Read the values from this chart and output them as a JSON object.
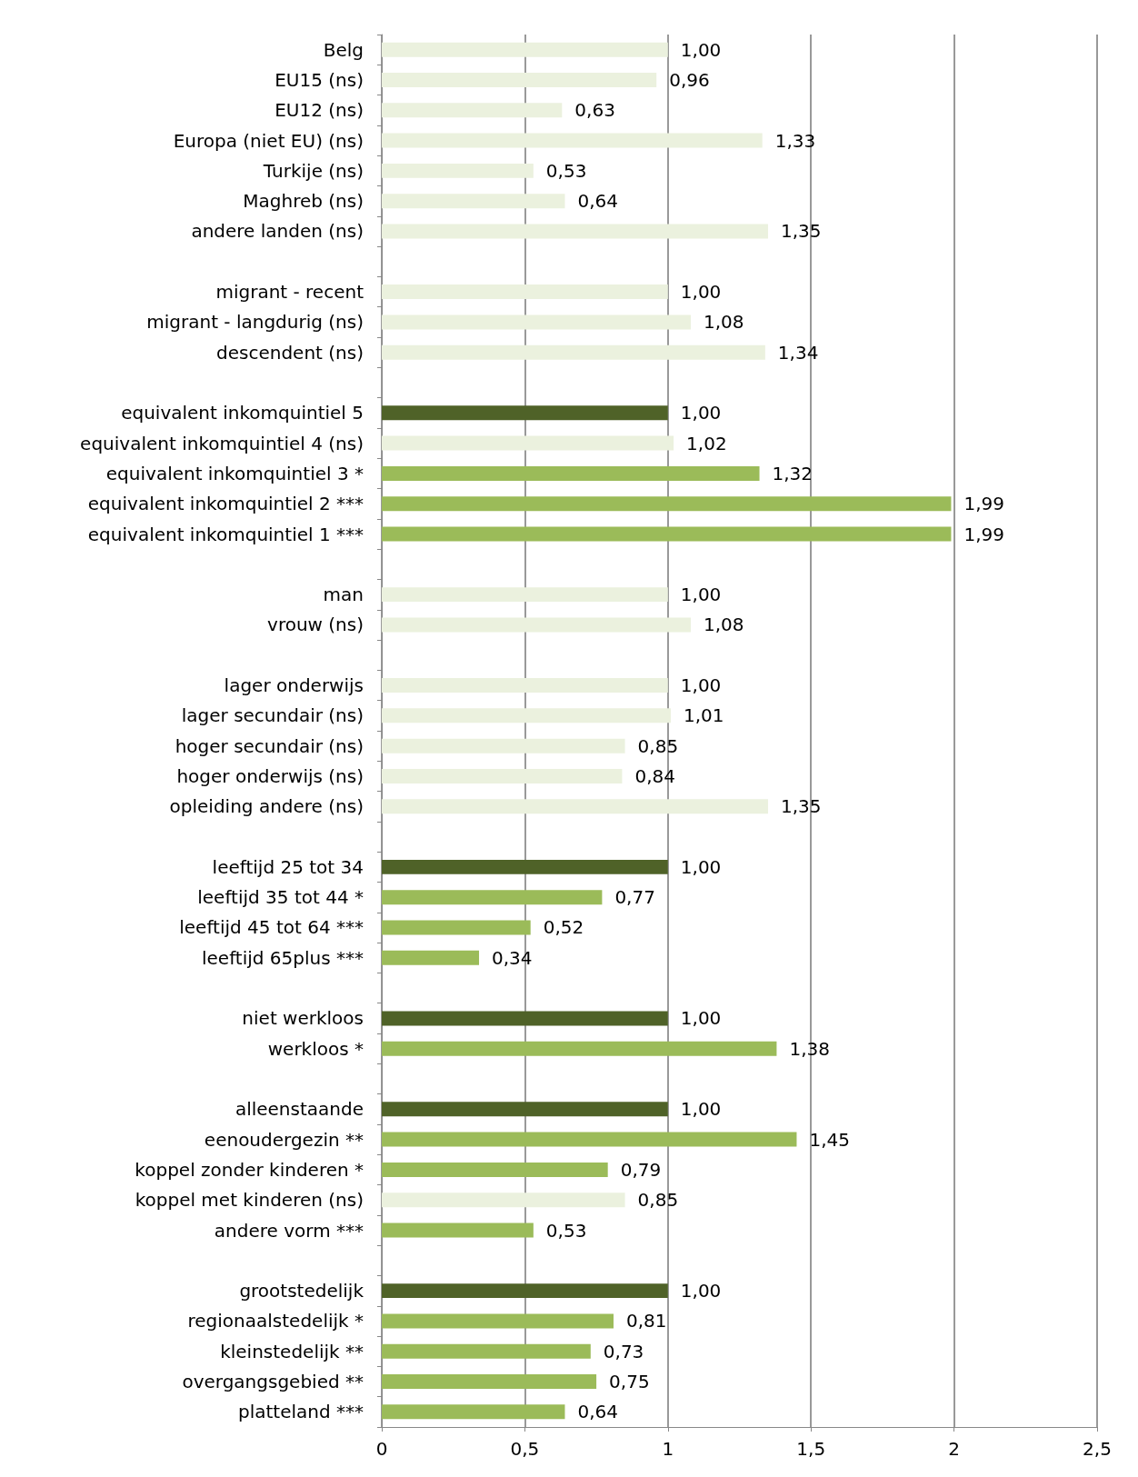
{
  "chart_data": {
    "type": "bar",
    "orientation": "horizontal",
    "grid": "x",
    "categories": [
      "Belg",
      "EU15 (ns)",
      "EU12 (ns)",
      "Europa (niet EU) (ns)",
      "Turkije (ns)",
      "Maghreb (ns)",
      "andere landen (ns)",
      null,
      "migrant - recent",
      "migrant - langdurig (ns)",
      "descendent (ns)",
      null,
      "equivalent inkomquintiel 5",
      "equivalent inkomquintiel 4 (ns)",
      "equivalent inkomquintiel 3 *",
      "equivalent inkomquintiel 2 ***",
      "equivalent inkomquintiel 1 ***",
      null,
      "man",
      "vrouw (ns)",
      null,
      "lager onderwijs",
      "lager secundair (ns)",
      "hoger secundair (ns)",
      "hoger onderwijs (ns)",
      "opleiding andere (ns)",
      null,
      "leeftijd 25 tot 34",
      "leeftijd 35 tot 44 *",
      "leeftijd 45 tot 64 ***",
      "leeftijd 65plus ***",
      null,
      "niet werkloos",
      "werkloos *",
      null,
      "alleenstaande",
      "eenoudergezin **",
      "koppel zonder kinderen *",
      "koppel met kinderen (ns)",
      "andere vorm ***",
      null,
      "grootstedelijk",
      "regionaalstedelijk *",
      "kleinstedelijk **",
      "overgangsgebied **",
      "platteland ***"
    ],
    "values": [
      1.0,
      0.96,
      0.63,
      1.33,
      0.53,
      0.64,
      1.35,
      null,
      1.0,
      1.08,
      1.34,
      null,
      1.0,
      1.02,
      1.32,
      1.99,
      1.99,
      null,
      1.0,
      1.08,
      null,
      1.0,
      1.01,
      0.85,
      0.84,
      1.35,
      null,
      1.0,
      0.77,
      0.52,
      0.34,
      null,
      1.0,
      1.38,
      null,
      1.0,
      1.45,
      0.79,
      0.85,
      0.53,
      null,
      1.0,
      0.81,
      0.73,
      0.75,
      0.64
    ],
    "value_labels": [
      "1,00",
      "0,96",
      "0,63",
      "1,33",
      "0,53",
      "0,64",
      "1,35",
      null,
      "1,00",
      "1,08",
      "1,34",
      null,
      "1,00",
      "1,02",
      "1,32",
      "1,99",
      "1,99",
      null,
      "1,00",
      "1,08",
      null,
      "1,00",
      "1,01",
      "0,85",
      "0,84",
      "1,35",
      null,
      "1,00",
      "0,77",
      "0,52",
      "0,34",
      null,
      "1,00",
      "1,38",
      null,
      "1,00",
      "1,45",
      "0,79",
      "0,85",
      "0,53",
      null,
      "1,00",
      "0,81",
      "0,73",
      "0,75",
      "0,64"
    ],
    "colors": [
      "#ebf1de",
      "#ebf1de",
      "#ebf1de",
      "#ebf1de",
      "#ebf1de",
      "#ebf1de",
      "#ebf1de",
      null,
      "#ebf1de",
      "#ebf1de",
      "#ebf1de",
      null,
      "#4f6228",
      "#ebf1de",
      "#9bbb59",
      "#9bbb59",
      "#9bbb59",
      null,
      "#ebf1de",
      "#ebf1de",
      null,
      "#ebf1de",
      "#ebf1de",
      "#ebf1de",
      "#ebf1de",
      "#ebf1de",
      null,
      "#4f6228",
      "#9bbb59",
      "#9bbb59",
      "#9bbb59",
      null,
      "#4f6228",
      "#9bbb59",
      null,
      "#4f6228",
      "#9bbb59",
      "#9bbb59",
      "#ebf1de",
      "#9bbb59",
      null,
      "#4f6228",
      "#9bbb59",
      "#9bbb59",
      "#9bbb59",
      "#9bbb59"
    ],
    "xlim": [
      0,
      2.5
    ],
    "xticks": [
      0,
      {
        "value": 0.5,
        "label": "0,5"
      },
      1,
      {
        "value": 1.5,
        "label": "1,5"
      },
      2,
      {
        "value": 2.5,
        "label": "2,5"
      }
    ]
  }
}
